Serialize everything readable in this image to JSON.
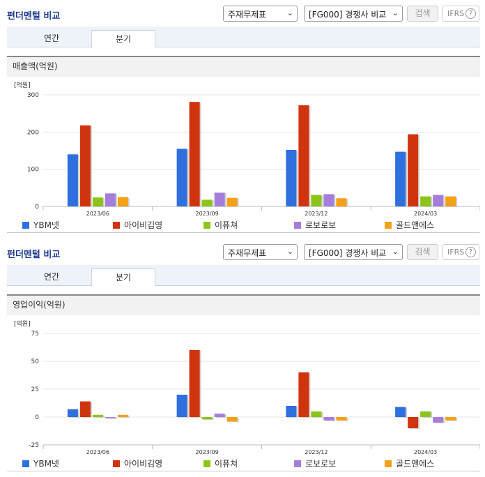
{
  "panels": [
    {
      "title": "펀더멘털 비교",
      "select1": "주재무제표",
      "select2": "[FG000] 경쟁사 비교",
      "search_label": "검색",
      "ifrs_label": "IFRS",
      "help_glyph": "?",
      "tabs": [
        "연간",
        "분기"
      ],
      "active_tab": 1,
      "section_title": "매출액(억원)",
      "unit": "[억원]"
    },
    {
      "title": "펀더멘털 비교",
      "select1": "주재무제표",
      "select2": "[FG000] 경쟁사 비교",
      "search_label": "검색",
      "ifrs_label": "IFRS",
      "help_glyph": "?",
      "tabs": [
        "연간",
        "분기"
      ],
      "active_tab": 1,
      "section_title": "영업이익(억원)",
      "unit": "[억원]"
    }
  ],
  "chart_data": [
    {
      "type": "bar",
      "title": "매출액(억원)",
      "categories": [
        "2023/06",
        "2023/09",
        "2023/12",
        "2024/03"
      ],
      "ylim": [
        0,
        300
      ],
      "yticks": [
        0,
        100,
        200,
        300
      ],
      "grid": true,
      "legend_position": "bottom",
      "series": [
        {
          "name": "YBM넷",
          "color": "#2f6fde",
          "values": [
            140,
            155,
            152,
            147
          ]
        },
        {
          "name": "아이비김영",
          "color": "#d0340f",
          "values": [
            218,
            281,
            272,
            194
          ]
        },
        {
          "name": "이퓨쳐",
          "color": "#8cc41a",
          "values": [
            24,
            18,
            31,
            27
          ]
        },
        {
          "name": "로보로보",
          "color": "#a57edb",
          "values": [
            35,
            37,
            33,
            31
          ]
        },
        {
          "name": "골드앤에스",
          "color": "#f4a118",
          "values": [
            25,
            23,
            22,
            27
          ]
        }
      ]
    },
    {
      "type": "bar",
      "title": "영업이익(억원)",
      "categories": [
        "2023/06",
        "2023/09",
        "2023/12",
        "2024/03"
      ],
      "ylim": [
        -25,
        75
      ],
      "yticks": [
        -25,
        0,
        25,
        50,
        75
      ],
      "grid": true,
      "legend_position": "bottom",
      "series": [
        {
          "name": "YBM넷",
          "color": "#2f6fde",
          "values": [
            7,
            20,
            10,
            9
          ]
        },
        {
          "name": "아이비김영",
          "color": "#d0340f",
          "values": [
            14,
            60,
            40,
            -10
          ]
        },
        {
          "name": "이퓨쳐",
          "color": "#8cc41a",
          "values": [
            2,
            -2,
            5,
            5
          ]
        },
        {
          "name": "로보로보",
          "color": "#a57edb",
          "values": [
            -1,
            3,
            -3,
            -5
          ]
        },
        {
          "name": "골드앤에스",
          "color": "#f4a118",
          "values": [
            2,
            -4,
            -3,
            -3
          ]
        }
      ]
    }
  ]
}
